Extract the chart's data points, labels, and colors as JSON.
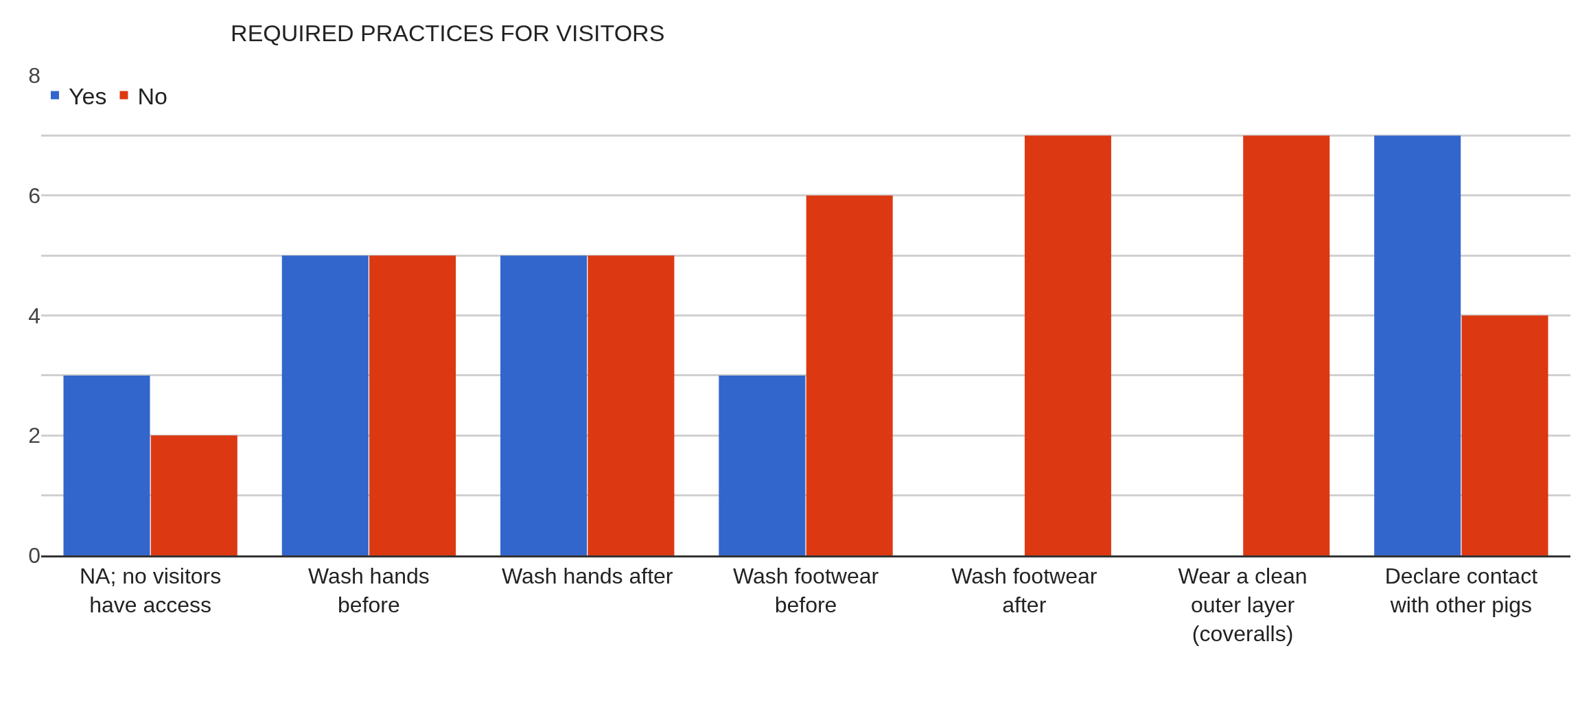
{
  "chart_data": {
    "type": "bar",
    "title": "REQUIRED PRACTICES FOR VISITORS",
    "categories": [
      "NA; no visitors have access",
      "Wash hands before",
      "Wash hands after",
      "Wash footwear before",
      "Wash footwear after",
      "Wear a clean outer layer (coveralls)",
      "Declare contact with other pigs"
    ],
    "series": [
      {
        "name": "Yes",
        "color": "#3366cc",
        "values": [
          3,
          5,
          5,
          3,
          0,
          0,
          7
        ]
      },
      {
        "name": "No",
        "color": "#dc3912",
        "values": [
          2,
          5,
          5,
          6,
          7,
          7,
          4
        ]
      }
    ],
    "ylim": [
      0,
      8
    ],
    "yticks": [
      0,
      {
        "value": 1,
        "label": null
      },
      2,
      {
        "value": 3,
        "label": null
      },
      4,
      {
        "value": 5,
        "label": null
      },
      6,
      {
        "value": 7,
        "label": null
      },
      8
    ],
    "grid": "y",
    "legend": "top left"
  }
}
